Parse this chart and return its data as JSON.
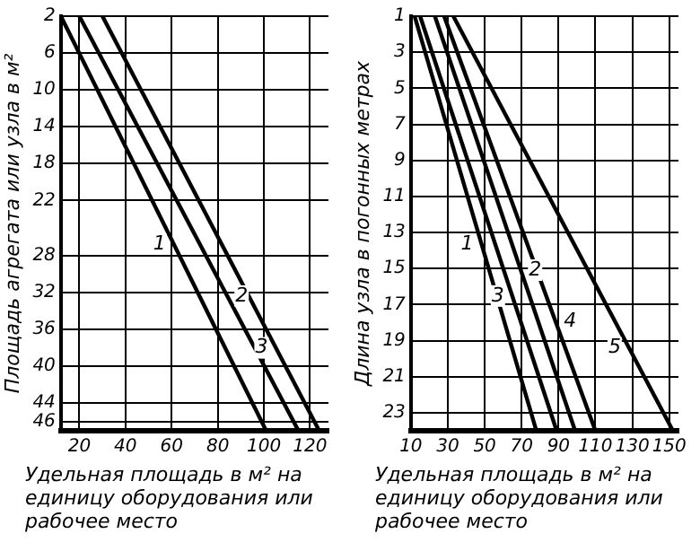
{
  "chart_data": [
    {
      "type": "line",
      "xlabel": "Удельная площадь в м² на единицу оборудования или рабочее место",
      "ylabel": "Площадь агрегата или узла в м²",
      "xlim": [
        12,
        128
      ],
      "xticks": [
        20,
        40,
        60,
        80,
        100,
        120
      ],
      "ylim": [
        47,
        2
      ],
      "yticks": [
        2,
        6,
        10,
        14,
        18,
        22,
        28,
        32,
        36,
        40,
        44,
        46
      ],
      "grid": true,
      "legend": "center",
      "marker": "none",
      "series": [
        {
          "name": "1",
          "color": "#000000",
          "x": [
            12,
            101
          ],
          "values": [
            2,
            47
          ]
        },
        {
          "name": "2",
          "color": "#000000",
          "x": [
            20,
            115
          ],
          "values": [
            2,
            47
          ]
        },
        {
          "name": "3",
          "color": "#000000",
          "x": [
            30,
            124
          ],
          "values": [
            2,
            47
          ]
        }
      ]
    },
    {
      "type": "line",
      "xlabel": "Удельная площадь в м² на единицу оборудования или рабочее место",
      "ylabel": "Длина узла в погонных метрах",
      "xlim": [
        10,
        155
      ],
      "xticks": [
        10,
        30,
        50,
        70,
        90,
        110,
        130,
        150
      ],
      "ylim": [
        24,
        1
      ],
      "yticks": [
        1,
        3,
        5,
        7,
        9,
        11,
        13,
        15,
        17,
        19,
        21,
        23
      ],
      "grid": true,
      "legend": "center",
      "marker": "none",
      "series": [
        {
          "name": "1",
          "color": "#000000",
          "x": [
            12,
            78
          ],
          "values": [
            1,
            24
          ]
        },
        {
          "name": "2",
          "color": "#000000",
          "x": [
            23,
            99
          ],
          "values": [
            1,
            24
          ]
        },
        {
          "name": "3",
          "color": "#000000",
          "x": [
            15,
            89
          ],
          "values": [
            1,
            24
          ]
        },
        {
          "name": "4",
          "color": "#000000",
          "x": [
            28,
            110
          ],
          "values": [
            1,
            24
          ]
        },
        {
          "name": "5",
          "color": "#000000",
          "x": [
            33,
            152
          ],
          "values": [
            1,
            24
          ]
        }
      ]
    }
  ]
}
